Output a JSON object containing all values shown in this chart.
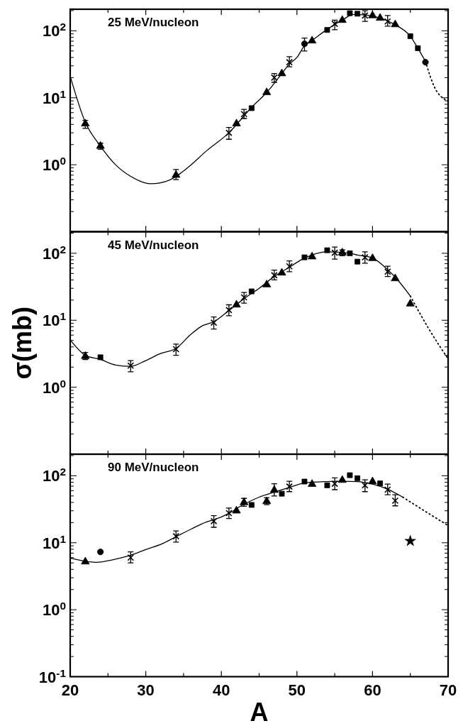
{
  "chart_data": [
    {
      "type": "scatter",
      "title": "25 MeV/nucleon",
      "log": "y",
      "grid": false,
      "tick_labels": "y",
      "xlim": [
        20,
        70
      ],
      "ylim": [
        0.1,
        210
      ],
      "xticks": [
        20,
        {
          "value": 25,
          "label": null
        },
        30,
        {
          "value": 35,
          "label": null
        },
        40,
        {
          "value": 45,
          "label": null
        },
        50,
        {
          "value": 55,
          "label": null
        },
        60,
        {
          "value": 65,
          "label": null
        },
        70
      ],
      "yticks": [
        {
          "value": 0.2,
          "label": null
        },
        {
          "value": 0.3,
          "label": null
        },
        {
          "value": 0.4,
          "label": null
        },
        {
          "value": 0.5,
          "label": null
        },
        {
          "value": 0.6,
          "label": null
        },
        {
          "value": 0.7,
          "label": null
        },
        {
          "value": 0.8,
          "label": null
        },
        {
          "value": 0.9,
          "label": null
        },
        {
          "value": 1,
          "label": "10$^{0}$"
        },
        {
          "value": 2,
          "label": null
        },
        {
          "value": 3,
          "label": null
        },
        {
          "value": 4,
          "label": null
        },
        {
          "value": 5,
          "label": null
        },
        {
          "value": 6,
          "label": null
        },
        {
          "value": 7,
          "label": null
        },
        {
          "value": 8,
          "label": null
        },
        {
          "value": 9,
          "label": null
        },
        {
          "value": 10,
          "label": "10$^{1}$"
        },
        {
          "value": 20,
          "label": null
        },
        {
          "value": 30,
          "label": null
        },
        {
          "value": 40,
          "label": null
        },
        {
          "value": 50,
          "label": null
        },
        {
          "value": 60,
          "label": null
        },
        {
          "value": 70,
          "label": null
        },
        {
          "value": 80,
          "label": null
        },
        {
          "value": 90,
          "label": null
        },
        {
          "value": 100,
          "label": "10$^{2}$"
        },
        {
          "value": 200,
          "label": null
        }
      ],
      "series": [
        {
          "marker": "triangle",
          "color": "#000000",
          "x": [
            22,
            24,
            34,
            42,
            46,
            48,
            52,
            56,
            60,
            61,
            63
          ],
          "values": [
            4.1,
            1.9,
            0.7,
            4.1,
            12,
            23,
            71,
            144,
            169,
            155,
            124
          ],
          "errors": [
            [
              3.5,
              4.6
            ],
            [
              1.7,
              2.1
            ],
            [
              0.6,
              0.85
            ],
            null,
            null,
            null,
            null,
            null,
            null,
            null,
            null
          ]
        },
        {
          "marker": "square",
          "color": "#000000",
          "x": [
            44,
            54,
            57,
            58,
            65,
            66
          ],
          "values": [
            7.0,
            103,
            183,
            180,
            83,
            55
          ]
        },
        {
          "marker": "circle",
          "color": "#000000",
          "x": [
            51,
            67
          ],
          "values": [
            64,
            34
          ],
          "errors": [
            [
              50,
              78
            ],
            null
          ]
        },
        {
          "marker": "cross",
          "color": "#000000",
          "x": [
            41,
            43,
            47,
            49,
            55,
            59,
            62
          ],
          "values": [
            3.0,
            5.7,
            20,
            34,
            127,
            169,
            138
          ],
          "errors": [
            [
              2.4,
              3.6
            ],
            [
              4.9,
              6.7
            ],
            [
              17,
              23
            ],
            [
              29,
              41
            ],
            [
              104,
              144
            ],
            [
              138,
              199
            ],
            [
              117,
              169
            ]
          ]
        },
        {
          "type": "line",
          "line_style": "solid",
          "color": "#000000",
          "x": [
            20,
            22,
            24,
            26,
            28,
            30.7,
            33,
            34,
            36,
            38,
            41,
            44,
            46,
            48,
            49,
            50,
            51,
            52,
            54,
            56,
            57.5,
            59,
            60,
            61,
            62,
            63,
            65,
            66,
            67
          ],
          "values": [
            21,
            4.3,
            1.9,
            1.0,
            0.67,
            0.52,
            0.58,
            0.67,
            1.0,
            1.6,
            3.0,
            7.2,
            12,
            23,
            32,
            40,
            60,
            72,
            105,
            145,
            175,
            172,
            165,
            155,
            140,
            123,
            83,
            55,
            35
          ]
        },
        {
          "type": "line",
          "line_style": "dotted",
          "color": "#000000",
          "x": [
            67,
            68.2,
            70
          ],
          "values": [
            35,
            14.4,
            8.9
          ]
        }
      ]
    },
    {
      "type": "scatter",
      "title": "45 MeV/nucleon",
      "ylabel": "σ(mb)",
      "log": "y",
      "grid": false,
      "tick_labels": "y",
      "xlim": [
        20,
        70
      ],
      "ylim": [
        0.1,
        210
      ],
      "xticks": [
        20,
        {
          "value": 25,
          "label": null
        },
        30,
        {
          "value": 35,
          "label": null
        },
        40,
        {
          "value": 45,
          "label": null
        },
        50,
        {
          "value": 55,
          "label": null
        },
        60,
        {
          "value": 65,
          "label": null
        },
        70
      ],
      "yticks": [
        {
          "value": 0.2,
          "label": null
        },
        {
          "value": 0.3,
          "label": null
        },
        {
          "value": 0.4,
          "label": null
        },
        {
          "value": 0.5,
          "label": null
        },
        {
          "value": 0.6,
          "label": null
        },
        {
          "value": 0.7,
          "label": null
        },
        {
          "value": 0.8,
          "label": null
        },
        {
          "value": 0.9,
          "label": null
        },
        {
          "value": 1,
          "label": "10$^{0}$"
        },
        {
          "value": 2,
          "label": null
        },
        {
          "value": 3,
          "label": null
        },
        {
          "value": 4,
          "label": null
        },
        {
          "value": 5,
          "label": null
        },
        {
          "value": 6,
          "label": null
        },
        {
          "value": 7,
          "label": null
        },
        {
          "value": 8,
          "label": null
        },
        {
          "value": 9,
          "label": null
        },
        {
          "value": 10,
          "label": "10$^{1}$"
        },
        {
          "value": 20,
          "label": null
        },
        {
          "value": 30,
          "label": null
        },
        {
          "value": 40,
          "label": null
        },
        {
          "value": 50,
          "label": null
        },
        {
          "value": 60,
          "label": null
        },
        {
          "value": 70,
          "label": null
        },
        {
          "value": 80,
          "label": null
        },
        {
          "value": 90,
          "label": null
        },
        {
          "value": 100,
          "label": "10$^{2}$"
        },
        {
          "value": 200,
          "label": null
        }
      ],
      "series": [
        {
          "marker": "triangle",
          "color": "#000000",
          "x": [
            22,
            42,
            46,
            48,
            52,
            56,
            60,
            63,
            65
          ],
          "values": [
            2.9,
            17,
            34,
            51,
            89,
            102,
            84,
            42,
            17.6
          ],
          "errors": [
            [
              2.6,
              3.3
            ],
            null,
            null,
            null,
            null,
            [
              92,
              112
            ],
            null,
            null,
            null
          ]
        },
        {
          "marker": "square",
          "color": "#000000",
          "x": [
            24,
            44,
            51,
            54,
            57,
            58
          ],
          "values": [
            2.8,
            27,
            87,
            111,
            100,
            75
          ]
        },
        {
          "marker": "cross",
          "color": "#000000",
          "x": [
            28,
            34,
            39,
            41,
            43,
            47,
            49,
            55,
            59,
            62
          ],
          "values": [
            2.1,
            3.7,
            9.2,
            14.2,
            22,
            47,
            64,
            102,
            87,
            53
          ],
          "errors": [
            [
              1.7,
              2.5
            ],
            [
              3.0,
              4.4
            ],
            [
              7.4,
              11.2
            ],
            [
              11.7,
              17
            ],
            [
              18,
              26
            ],
            [
              40,
              56
            ],
            [
              53,
              77
            ],
            [
              82,
              124
            ],
            [
              71,
              105
            ],
            [
              45,
              64
            ]
          ]
        },
        {
          "type": "line",
          "line_style": "solid",
          "color": "#000000",
          "x": [
            20,
            22,
            24,
            26,
            28,
            30,
            32,
            34,
            36,
            37.5,
            39,
            41,
            43,
            45,
            47,
            49,
            51,
            54,
            57,
            58,
            60,
            62,
            63,
            65
          ],
          "values": [
            5.1,
            3.0,
            2.6,
            2.15,
            2.05,
            2.5,
            3.2,
            3.8,
            6.2,
            8.3,
            9.5,
            14,
            21,
            30,
            45,
            62,
            85,
            105,
            100,
            94,
            85,
            57,
            44,
            23
          ]
        },
        {
          "type": "line",
          "line_style": "dotted",
          "color": "#000000",
          "x": [
            65,
            67.4,
            70
          ],
          "values": [
            23,
            7.6,
            2.65
          ]
        }
      ]
    },
    {
      "type": "scatter",
      "title": "90 MeV/nucleon",
      "xlabel": "A",
      "log": "y",
      "grid": false,
      "xlim": [
        20,
        70
      ],
      "ylim": [
        0.1,
        210
      ],
      "xticks": [
        20,
        {
          "value": 25,
          "label": null
        },
        30,
        {
          "value": 35,
          "label": null
        },
        40,
        {
          "value": 45,
          "label": null
        },
        50,
        {
          "value": 55,
          "label": null
        },
        60,
        {
          "value": 65,
          "label": null
        },
        70
      ],
      "yticks": [
        {
          "value": 0.1,
          "label": "10$^{-1}$"
        },
        {
          "value": 0.2,
          "label": null
        },
        {
          "value": 0.3,
          "label": null
        },
        {
          "value": 0.4,
          "label": null
        },
        {
          "value": 0.5,
          "label": null
        },
        {
          "value": 0.6,
          "label": null
        },
        {
          "value": 0.7,
          "label": null
        },
        {
          "value": 0.8,
          "label": null
        },
        {
          "value": 0.9,
          "label": null
        },
        {
          "value": 1,
          "label": "10$^{0}$"
        },
        {
          "value": 2,
          "label": null
        },
        {
          "value": 3,
          "label": null
        },
        {
          "value": 4,
          "label": null
        },
        {
          "value": 5,
          "label": null
        },
        {
          "value": 6,
          "label": null
        },
        {
          "value": 7,
          "label": null
        },
        {
          "value": 8,
          "label": null
        },
        {
          "value": 9,
          "label": null
        },
        {
          "value": 10,
          "label": "10$^{1}$"
        },
        {
          "value": 20,
          "label": null
        },
        {
          "value": 30,
          "label": null
        },
        {
          "value": 40,
          "label": null
        },
        {
          "value": 50,
          "label": null
        },
        {
          "value": 60,
          "label": null
        },
        {
          "value": 70,
          "label": null
        },
        {
          "value": 80,
          "label": null
        },
        {
          "value": 90,
          "label": null
        },
        {
          "value": 100,
          "label": "10$^{2}$"
        },
        {
          "value": 200,
          "label": null
        }
      ],
      "series": [
        {
          "marker": "triangle",
          "color": "#000000",
          "x": [
            22,
            42,
            43,
            46,
            47,
            52,
            56,
            60
          ],
          "values": [
            5.2,
            30,
            40,
            41.5,
            61,
            75,
            86,
            82
          ],
          "errors": [
            null,
            null,
            [
              35,
              46
            ],
            [
              37,
              47
            ],
            [
              50,
              76
            ],
            null,
            null,
            null
          ]
        },
        {
          "marker": "square",
          "color": "#000000",
          "x": [
            44,
            48,
            51,
            54,
            57,
            58,
            61
          ],
          "values": [
            36.7,
            54,
            82,
            72,
            102,
            92,
            77
          ]
        },
        {
          "marker": "circle",
          "color": "#000000",
          "x": [
            24
          ],
          "values": [
            7.3
          ]
        },
        {
          "marker": "cross",
          "color": "#000000",
          "x": [
            28,
            34,
            39,
            41,
            49,
            55,
            59,
            62,
            63
          ],
          "values": [
            6.0,
            12.5,
            21,
            27.7,
            69,
            76,
            72,
            62,
            42.5
          ],
          "errors": [
            [
              5.0,
              7.3
            ],
            [
              10.2,
              15
            ],
            [
              17,
              25.4
            ],
            [
              23,
              33
            ],
            [
              58,
              83
            ],
            [
              62,
              93
            ],
            [
              58,
              87
            ],
            [
              52,
              75
            ],
            [
              35.6,
              52
            ]
          ]
        },
        {
          "marker": "star",
          "color": "#000000",
          "x": [
            65
          ],
          "values": [
            10.6
          ]
        },
        {
          "type": "line",
          "line_style": "solid",
          "color": "#000000",
          "x": [
            20,
            22,
            23.5,
            25.4,
            28,
            30,
            32.3,
            34,
            36,
            38,
            39,
            41,
            42.7,
            45,
            47,
            49,
            51,
            54,
            56,
            58,
            60,
            62,
            64
          ],
          "values": [
            5.9,
            5.3,
            5.1,
            5.5,
            6.5,
            7.9,
            9.8,
            12.3,
            16,
            20.4,
            22,
            27.5,
            36,
            48,
            57,
            67,
            78,
            82,
            83,
            82,
            75,
            63,
            48
          ]
        },
        {
          "type": "line",
          "line_style": "dotted",
          "color": "#000000",
          "x": [
            64,
            67.3,
            70
          ],
          "values": [
            48,
            27.9,
            18.1
          ]
        }
      ]
    }
  ]
}
